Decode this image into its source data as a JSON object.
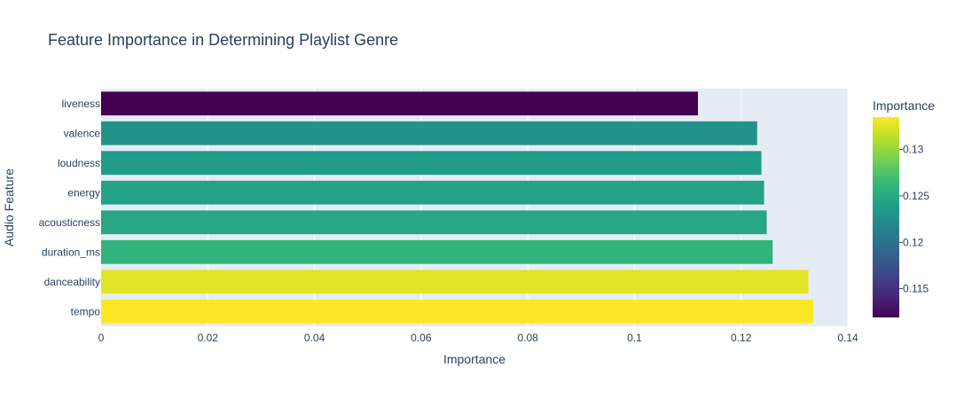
{
  "chart_data": {
    "type": "bar",
    "orientation": "horizontal",
    "title": "Feature Importance in Determining Playlist Genre",
    "xlabel": "Importance",
    "ylabel": "Audio Feature",
    "xlim": [
      0,
      0.14
    ],
    "x_ticks": [
      0,
      0.02,
      0.04,
      0.06,
      0.08,
      0.1,
      0.12,
      0.14
    ],
    "x_tick_labels": [
      "0",
      "0.02",
      "0.04",
      "0.06",
      "0.08",
      "0.1",
      "0.12",
      "0.14"
    ],
    "categories": [
      "liveness",
      "valence",
      "loudness",
      "energy",
      "acousticness",
      "duration_ms",
      "danceability",
      "tempo"
    ],
    "values": [
      0.1119,
      0.123,
      0.1238,
      0.1243,
      0.1248,
      0.1259,
      0.1326,
      0.1335
    ],
    "grid": true,
    "colorbar": {
      "title": "Importance",
      "colorscale": "Viridis",
      "range": [
        0.1119,
        0.1335
      ],
      "ticks": [
        0.115,
        0.12,
        0.125,
        0.13
      ],
      "tick_labels": [
        "0.115",
        "0.12",
        "0.125",
        "0.13"
      ]
    },
    "colors": {
      "plot_bg": "#e5ecf6",
      "grid": "#ffffff",
      "text": "#2a3f5f"
    }
  }
}
